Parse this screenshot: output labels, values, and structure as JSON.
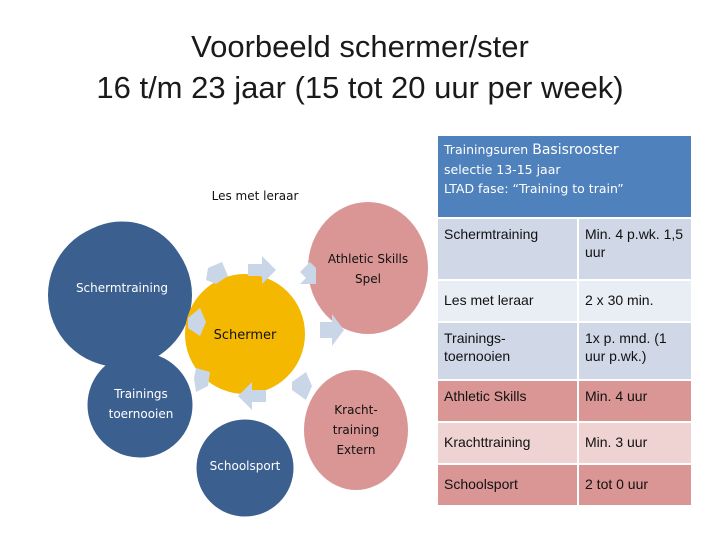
{
  "title": {
    "line1": "Voorbeeld schermer/ster",
    "line2": "16 t/m 23 jaar (15 tot 20 uur per week)"
  },
  "diagram": {
    "center": "Schermer",
    "nodes": {
      "les_met_leraar": "Les met leraar",
      "schermtraining": "Schermtraining",
      "trainings_line1": "Trainings",
      "trainings_line2": "toernooien",
      "schoolsport": "Schoolsport",
      "athletic_line1": "Athletic Skills",
      "athletic_line2": "Spel",
      "kracht_line1": "Kracht-",
      "kracht_line2": "training",
      "kracht_line3": "Extern"
    },
    "colors": {
      "blue_node": "#3b5f8f",
      "center": "#f5b800",
      "red_node": "#d99694",
      "arrow": "#c9d6e8"
    }
  },
  "table": {
    "header_small": "Trainingsuren",
    "header_big": "Basisrooster",
    "header_line2": "selectie 13-15 jaar",
    "header_line3": "LTAD fase: “Training to train”",
    "rows": [
      {
        "activity": "Schermtraining",
        "time": "Min. 4 p.wk. 1,5 uur"
      },
      {
        "activity": "Les met leraar",
        "time": "2 x 30 min."
      },
      {
        "activity": "Trainings- toernooien",
        "time": "1x p. mnd. (1 uur p.wk.)"
      },
      {
        "activity": "Athletic Skills",
        "time": "Min. 4 uur"
      },
      {
        "activity": "Krachttraining",
        "time": "Min. 3 uur"
      },
      {
        "activity": "Schoolsport",
        "time": "2 tot 0 uur"
      }
    ]
  }
}
